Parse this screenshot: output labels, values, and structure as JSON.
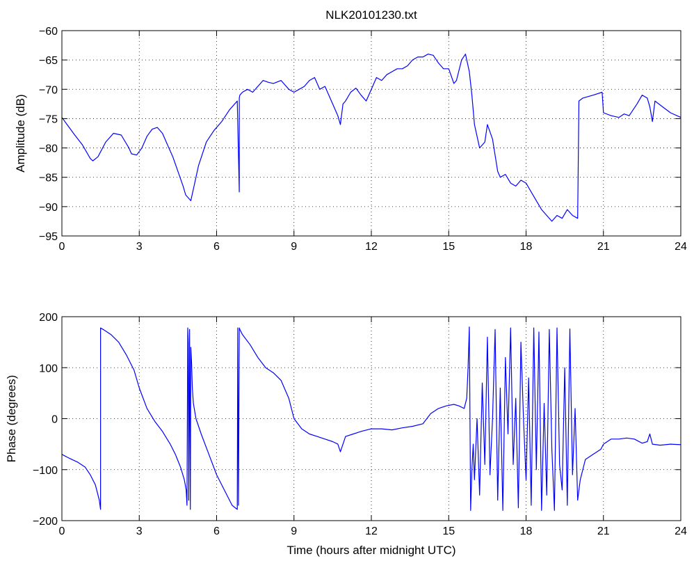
{
  "figure": {
    "title": "NLK20101230.txt"
  },
  "chart_data": [
    {
      "type": "line",
      "title": "NLK20101230.txt",
      "xlabel": "",
      "ylabel": "Amplitude (dB)",
      "xlim": [
        0,
        24
      ],
      "ylim": [
        -95,
        -60
      ],
      "xticks": [
        "0",
        "3",
        "6",
        "9",
        "12",
        "15",
        "18",
        "21",
        "24"
      ],
      "yticks": [
        "-95",
        "-90",
        "-85",
        "-80",
        "-75",
        "-70",
        "-65",
        "-60"
      ],
      "grid": true,
      "line_color": "#0000ff",
      "series": [
        {
          "x": [
            0.0,
            0.2,
            0.5,
            0.8,
            1.1,
            1.2,
            1.4,
            1.7,
            2.0,
            2.3,
            2.6,
            2.7,
            2.9,
            3.1,
            3.3,
            3.5,
            3.7,
            3.9,
            4.1,
            4.3,
            4.5,
            4.7,
            4.8,
            5.0,
            5.1,
            5.3,
            5.6,
            5.9,
            6.2,
            6.5,
            6.8,
            6.88,
            6.88,
            6.9,
            7.0,
            7.2,
            7.4,
            7.6,
            7.8,
            8.0,
            8.2,
            8.5,
            8.8,
            9.0,
            9.2,
            9.4,
            9.6,
            9.8,
            10.0,
            10.2,
            10.4,
            10.6,
            10.7,
            10.8,
            10.9,
            11.0,
            11.2,
            11.4,
            11.6,
            11.8,
            12.0,
            12.2,
            12.4,
            12.6,
            12.8,
            13.0,
            13.2,
            13.4,
            13.6,
            13.8,
            14.0,
            14.2,
            14.4,
            14.6,
            14.8,
            15.0,
            15.2,
            15.3,
            15.5,
            15.65,
            15.8,
            15.9,
            16.0,
            16.2,
            16.4,
            16.5,
            16.7,
            16.9,
            17.0,
            17.2,
            17.4,
            17.6,
            17.8,
            18.0,
            18.2,
            18.4,
            18.6,
            18.8,
            19.0,
            19.2,
            19.4,
            19.6,
            19.8,
            20.0,
            20.05,
            20.2,
            20.6,
            20.95,
            21.0,
            21.3,
            21.6,
            21.8,
            22.0,
            22.3,
            22.5,
            22.7,
            22.8,
            22.9,
            23.0,
            23.3,
            23.6,
            24.0
          ],
          "y": [
            -74.8,
            -76.0,
            -77.8,
            -79.5,
            -81.8,
            -82.2,
            -81.5,
            -79.0,
            -77.5,
            -77.8,
            -80.0,
            -81.0,
            -81.2,
            -80.0,
            -78.0,
            -76.8,
            -76.5,
            -77.5,
            -79.5,
            -81.5,
            -84.0,
            -86.5,
            -88.0,
            -89.0,
            -87.0,
            -83.0,
            -79.0,
            -77.0,
            -75.5,
            -73.5,
            -72.0,
            -87.5,
            -71.5,
            -71.0,
            -70.5,
            -70.0,
            -70.5,
            -69.5,
            -68.5,
            -68.8,
            -69.0,
            -68.5,
            -70.0,
            -70.5,
            -70.0,
            -69.5,
            -68.5,
            -68.0,
            -70.0,
            -69.5,
            -71.5,
            -73.5,
            -74.5,
            -76.0,
            -72.5,
            -72.0,
            -70.5,
            -69.8,
            -71.0,
            -72.0,
            -70.0,
            -68.0,
            -68.5,
            -67.5,
            -67.0,
            -66.5,
            -66.5,
            -66.0,
            -65.0,
            -64.5,
            -64.5,
            -64.0,
            -64.2,
            -65.5,
            -66.5,
            -66.5,
            -69.0,
            -68.5,
            -65.0,
            -64.0,
            -67.0,
            -71.0,
            -76.0,
            -80.0,
            -79.0,
            -76.0,
            -78.5,
            -84.0,
            -85.0,
            -84.5,
            -86.0,
            -86.5,
            -85.5,
            -86.0,
            -87.5,
            -89.0,
            -90.5,
            -91.5,
            -92.5,
            -91.5,
            -92.0,
            -90.5,
            -91.5,
            -92.0,
            -72.0,
            -71.5,
            -71.0,
            -70.5,
            -74.0,
            -74.5,
            -74.8,
            -74.2,
            -74.5,
            -72.5,
            -71.0,
            -71.5,
            -73.0,
            -75.5,
            -72.0,
            -73.0,
            -74.0,
            -74.8
          ]
        }
      ]
    },
    {
      "type": "line",
      "title": "",
      "xlabel": "Time (hours after midnight UTC)",
      "ylabel": "Phase (degrees)",
      "xlim": [
        0,
        24
      ],
      "ylim": [
        -200,
        200
      ],
      "xticks": [
        "0",
        "3",
        "6",
        "9",
        "12",
        "15",
        "18",
        "21",
        "24"
      ],
      "yticks": [
        "-200",
        "-100",
        "0",
        "100",
        "200"
      ],
      "grid": true,
      "line_color": "#0000ff",
      "series": [
        {
          "x": [
            0.0,
            0.3,
            0.6,
            0.9,
            1.1,
            1.3,
            1.45,
            1.5,
            1.5,
            1.6,
            1.9,
            2.2,
            2.5,
            2.8,
            3.0,
            3.3,
            3.6,
            3.9,
            4.2,
            4.4,
            4.6,
            4.75,
            4.82,
            4.85,
            4.88,
            4.9,
            4.92,
            4.95,
            4.98,
            5.0,
            5.03,
            5.06,
            5.1,
            5.2,
            5.4,
            5.7,
            6.0,
            6.3,
            6.6,
            6.8,
            6.82,
            6.85,
            6.88,
            6.9,
            7.0,
            7.3,
            7.6,
            7.9,
            8.2,
            8.5,
            8.8,
            9.0,
            9.3,
            9.6,
            9.9,
            10.2,
            10.5,
            10.7,
            10.8,
            11.0,
            11.3,
            11.6,
            12.0,
            12.4,
            12.8,
            13.2,
            13.6,
            14.0,
            14.3,
            14.6,
            14.9,
            15.2,
            15.4,
            15.6,
            15.7,
            15.75,
            15.8,
            15.85,
            15.9,
            15.95,
            16.0,
            16.1,
            16.2,
            16.3,
            16.4,
            16.5,
            16.6,
            16.7,
            16.8,
            16.9,
            17.0,
            17.1,
            17.2,
            17.3,
            17.4,
            17.5,
            17.6,
            17.7,
            17.8,
            17.9,
            18.0,
            18.1,
            18.2,
            18.3,
            18.4,
            18.5,
            18.6,
            18.7,
            18.8,
            18.9,
            19.0,
            19.1,
            19.2,
            19.3,
            19.4,
            19.5,
            19.6,
            19.7,
            19.8,
            19.9,
            20.0,
            20.1,
            20.3,
            20.6,
            20.9,
            21.0,
            21.3,
            21.6,
            21.9,
            22.2,
            22.5,
            22.7,
            22.8,
            22.9,
            23.2,
            23.6,
            24.0
          ],
          "y": [
            -70,
            -78,
            -85,
            -95,
            -110,
            -130,
            -160,
            -178,
            178,
            175,
            165,
            150,
            125,
            95,
            60,
            20,
            -5,
            -25,
            -50,
            -70,
            -95,
            -120,
            -140,
            -170,
            178,
            150,
            -160,
            175,
            -178,
            140,
            110,
            60,
            30,
            0,
            -30,
            -70,
            -110,
            -140,
            -170,
            -178,
            178,
            -170,
            178,
            175,
            165,
            145,
            120,
            100,
            90,
            75,
            40,
            0,
            -20,
            -30,
            -35,
            -40,
            -45,
            -50,
            -65,
            -35,
            -30,
            -25,
            -20,
            -20,
            -22,
            -18,
            -15,
            -10,
            10,
            20,
            25,
            28,
            25,
            20,
            40,
            100,
            180,
            -180,
            -100,
            -50,
            -120,
            0,
            -150,
            70,
            -90,
            160,
            -110,
            0,
            175,
            -160,
            60,
            -180,
            120,
            -30,
            178,
            -90,
            40,
            -175,
            150,
            0,
            -120,
            80,
            -170,
            178,
            -100,
            170,
            -180,
            30,
            -150,
            175,
            -60,
            -180,
            178,
            -90,
            -140,
            100,
            -170,
            176,
            -110,
            20,
            -160,
            -120,
            -80,
            -70,
            -60,
            -50,
            -40,
            -40,
            -38,
            -40,
            -48,
            -45,
            -30,
            -50,
            -52,
            -50,
            -51
          ]
        }
      ]
    }
  ]
}
